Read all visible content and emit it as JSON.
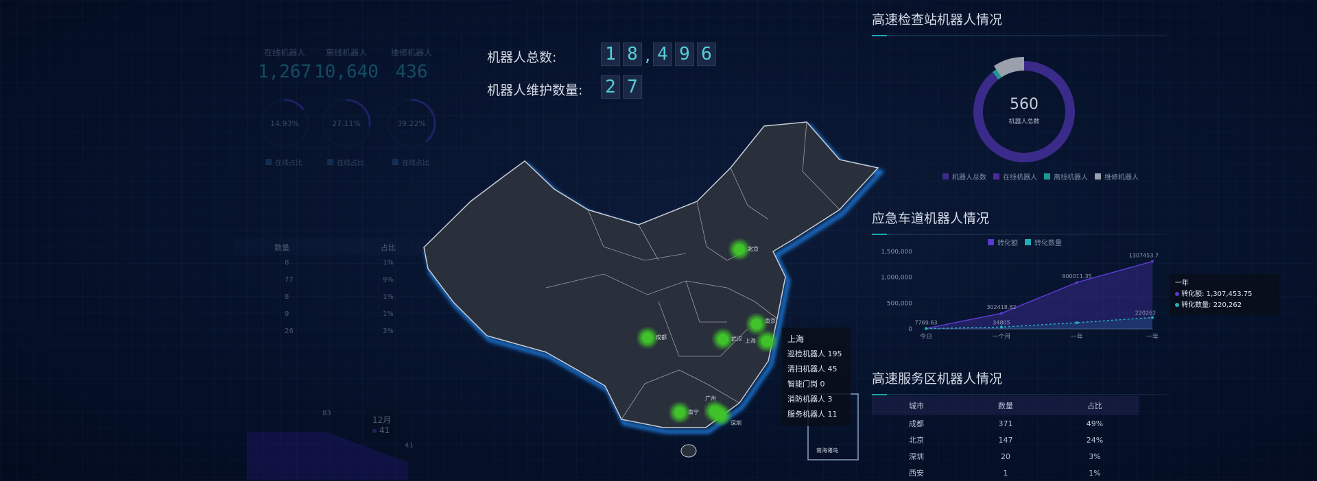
{
  "left_panel": {
    "stats": [
      {
        "label": "在线机器人",
        "value": "1,267"
      },
      {
        "label": "离线机器人",
        "value": "10,640"
      },
      {
        "label": "维修机器人",
        "value": "436"
      }
    ],
    "gauges": [
      {
        "text": "14.93%",
        "percent": 14.93,
        "legend": "在线占比"
      },
      {
        "text": "27.11%",
        "percent": 27.11,
        "legend": "在线占比"
      },
      {
        "text": "39.22%",
        "percent": 39.22,
        "legend": "在线占比"
      }
    ],
    "table": {
      "headers": [
        "数量",
        "占比"
      ],
      "rows": [
        [
          "8",
          "1%"
        ],
        [
          "77",
          "9%"
        ],
        [
          "8",
          "1%"
        ],
        [
          "9",
          "1%"
        ],
        [
          "26",
          "3%"
        ]
      ]
    },
    "area_chart": {
      "labels": [
        "83",
        "41"
      ],
      "tooltip": {
        "title": "12月",
        "value": "41"
      }
    }
  },
  "counters": {
    "total_label": "机器人总数:",
    "total_digits": [
      "1",
      "8",
      ",",
      "4",
      "9",
      "6"
    ],
    "maintenance_label": "机器人维护数量:",
    "maintenance_digits": [
      "2",
      "7"
    ]
  },
  "map": {
    "cities": [
      {
        "name": "北京"
      },
      {
        "name": "成都"
      },
      {
        "name": "武汉"
      },
      {
        "name": "南京"
      },
      {
        "name": "上海"
      },
      {
        "name": "南宁"
      },
      {
        "name": "广州"
      },
      {
        "name": "深圳"
      }
    ],
    "tooltip": {
      "title": "上海",
      "lines": [
        "巡检机器人 195",
        "清扫机器人 45",
        "智能门岗 0",
        "消防机器人 3",
        "服务机器人 11"
      ]
    },
    "inset_label": "南海诸岛",
    "colors": {
      "land": "#2a2f3c",
      "border": "#c8ccd4",
      "glow": "#1e78d8",
      "point": "#3fc22a"
    }
  },
  "checkpoint": {
    "title": "高速检查站机器人情况",
    "center_value": "560",
    "center_label": "机器人总数",
    "segments": [
      {
        "name": "机器人总数",
        "value": 500,
        "color": "#3a2a8a"
      },
      {
        "name": "在线机器人",
        "value": 0,
        "color": "#4b2a9a"
      },
      {
        "name": "离线机器人",
        "value": 8,
        "color": "#1a9a92"
      },
      {
        "name": "维修机器人",
        "value": 52,
        "color": "#9aa0ac"
      }
    ]
  },
  "emergency": {
    "title": "应急车道机器人情况",
    "chart_data": {
      "type": "area",
      "categories": [
        "今日",
        "一个月",
        "一年",
        "一年"
      ],
      "series": [
        {
          "name": "转化额",
          "values": [
            7769.63,
            302418.82,
            900011.35,
            1307453.75
          ],
          "color": "#5b3ad0"
        },
        {
          "name": "转化数量",
          "values": [
            6000,
            34805,
            120000,
            220262
          ],
          "color": "#22b0b8"
        }
      ],
      "yticks": [
        "0",
        "500,000",
        "1,000,000",
        "1,500,000"
      ],
      "ylim": [
        0,
        1500000
      ],
      "value_labels": [
        "7769.63",
        "302418.82",
        "34805",
        "900011.35",
        "1307453.75",
        "220262"
      ],
      "tooltip": {
        "title": "一年",
        "lines": [
          "转化额: 1,307,453.75",
          "转化数量: 220,262"
        ]
      },
      "legend": "top"
    }
  },
  "service": {
    "title": "高速服务区机器人情况",
    "headers": [
      "城市",
      "数量",
      "占比"
    ],
    "rows": [
      [
        "成都",
        "371",
        "49%"
      ],
      [
        "北京",
        "147",
        "24%"
      ],
      [
        "深圳",
        "20",
        "3%"
      ],
      [
        "西安",
        "1",
        "1%"
      ]
    ]
  }
}
